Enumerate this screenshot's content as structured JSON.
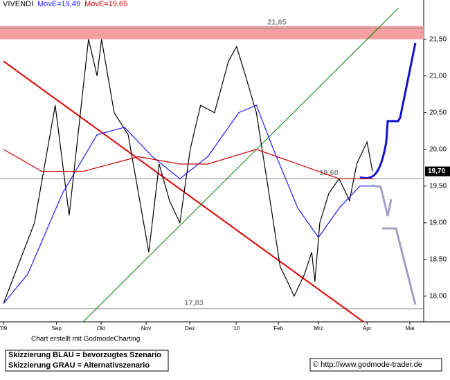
{
  "chart_data": {
    "type": "line",
    "title": "VIVENDI",
    "xlim": [
      0,
      9.4
    ],
    "ylim": [
      17.65,
      21.94
    ],
    "xticks": [
      {
        "value": 0,
        "label": "'09"
      },
      {
        "value": 1.18,
        "label": "Sep"
      },
      {
        "value": 2.17,
        "label": "Okt"
      },
      {
        "value": 3.17,
        "label": "Nov"
      },
      {
        "value": 4.14,
        "label": "Dez"
      },
      {
        "value": 5.17,
        "label": "'10"
      },
      {
        "value": 6.11,
        "label": "Feb"
      },
      {
        "value": 7.0,
        "label": "Mrz"
      },
      {
        "value": 8.08,
        "label": "Apr"
      },
      {
        "value": 9.03,
        "label": "Mai"
      }
    ],
    "yticks": [
      {
        "value": 18.0,
        "label": "18,00"
      },
      {
        "value": 18.5,
        "label": "18,50"
      },
      {
        "value": 19.0,
        "label": "19,00"
      },
      {
        "value": 19.5,
        "label": "19,50"
      },
      {
        "value": 20.0,
        "label": "20,00"
      },
      {
        "value": 20.5,
        "label": "20,50"
      },
      {
        "value": 21.0,
        "label": "21,00"
      },
      {
        "value": 21.5,
        "label": "21,50"
      }
    ],
    "series": [
      {
        "name": "VIVENDI",
        "color": "#000000",
        "x": [
          0,
          0.69,
          1.15,
          1.46,
          1.89,
          2.08,
          2.18,
          2.46,
          2.77,
          3.0,
          3.23,
          3.46,
          3.69,
          3.92,
          4.15,
          4.38,
          4.69,
          5.0,
          5.18,
          5.38,
          5.62,
          5.85,
          6.0,
          6.15,
          6.31,
          6.46,
          6.69,
          6.85,
          6.92,
          7.03,
          7.23,
          7.46,
          7.69,
          7.85,
          8.0,
          8.08,
          8.2
        ],
        "values": [
          17.9,
          19.0,
          20.6,
          19.1,
          21.5,
          21.0,
          21.5,
          20.5,
          20.2,
          19.4,
          18.6,
          19.8,
          19.3,
          19.0,
          20.0,
          20.6,
          20.5,
          21.2,
          21.4,
          21.0,
          20.5,
          19.6,
          19.0,
          18.4,
          18.2,
          18.0,
          18.3,
          18.6,
          18.2,
          19.0,
          19.4,
          19.6,
          19.3,
          19.8,
          20.0,
          20.1,
          19.7
        ]
      },
      {
        "name": "MovE=19,49",
        "color": "#1a1aff",
        "x": [
          0,
          0.54,
          1.31,
          2.08,
          2.69,
          3.31,
          3.92,
          4.54,
          5.23,
          5.62,
          6.0,
          6.54,
          7.0,
          7.46,
          7.92,
          8.2
        ],
        "values": [
          17.9,
          18.3,
          19.4,
          20.2,
          20.3,
          19.9,
          19.6,
          19.9,
          20.5,
          20.6,
          20.0,
          19.2,
          18.8,
          19.2,
          19.5,
          19.5
        ]
      },
      {
        "name": "MovE=19,65",
        "color": "#cc0000",
        "x": [
          0,
          0.85,
          1.77,
          3.0,
          3.92,
          4.54,
          5.62,
          6.54,
          7.46,
          8.23
        ],
        "values": [
          20.0,
          19.7,
          19.7,
          19.9,
          19.8,
          19.8,
          20.0,
          19.8,
          19.6,
          19.6
        ]
      }
    ],
    "trendlines": [
      {
        "color": "#e00000",
        "x": [
          0,
          8.0
        ],
        "values": [
          21.2,
          17.65
        ]
      },
      {
        "color": "#008000",
        "x": [
          1.77,
          8.77
        ],
        "values": [
          17.65,
          21.92
        ]
      }
    ],
    "resistance_zone": [
      21.5,
      21.68
    ],
    "levels": [
      {
        "value": 21.65,
        "label": "21,65"
      },
      {
        "value": 19.6,
        "label": "19,60"
      },
      {
        "value": 17.83,
        "label": "17,83"
      }
    ],
    "last_price": {
      "value": 19.7,
      "label": "19,70"
    },
    "credit": "Chart erstellt mit GodmodeCharting",
    "legend_notes": [
      "Skizzierung BLAU = bevorzugtes Szenario",
      "Skizzierung GRAU = Alternativszenario"
    ],
    "source": "© http://www.godmode-trader.de"
  }
}
